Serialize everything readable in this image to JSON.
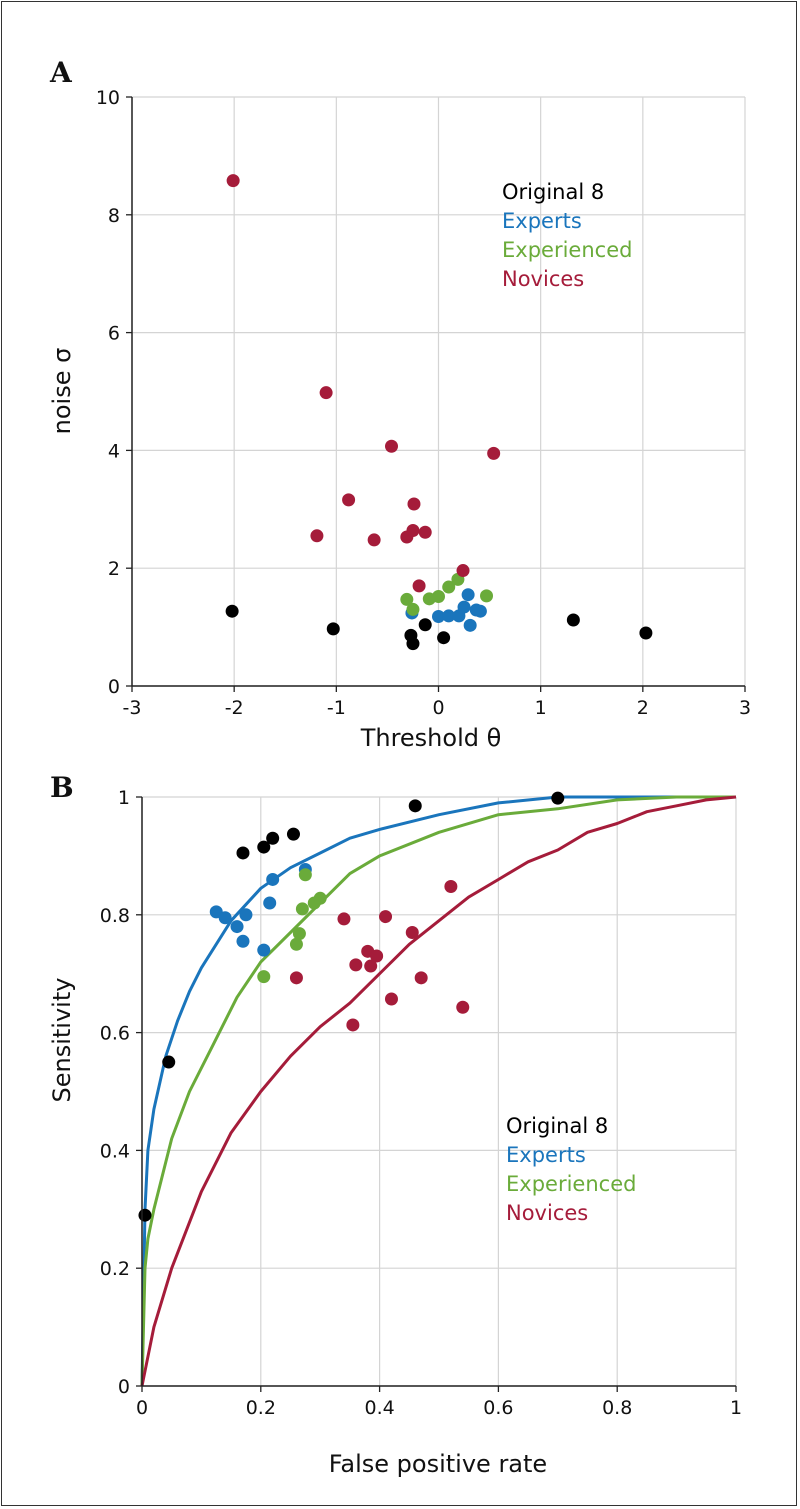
{
  "colors": {
    "original": "#000000",
    "experts": "#1a75bc",
    "experienced": "#6aab3a",
    "novices": "#a51c3a"
  },
  "chart_data": [
    {
      "type": "scatter",
      "panel_label": "A",
      "xlabel": "Threshold θ",
      "ylabel": "noise σ",
      "xlim": [
        -3,
        3
      ],
      "ylim": [
        0,
        10
      ],
      "xticks": [
        -3,
        -2,
        -1,
        0,
        1,
        2,
        3
      ],
      "yticks": [
        0,
        2,
        4,
        6,
        8,
        10
      ],
      "grid": true,
      "legend_position": "top-right",
      "legend": [
        "Original 8",
        "Experts",
        "Experienced",
        "Novices"
      ],
      "series": [
        {
          "name": "Original 8",
          "color": "#000000",
          "points": [
            [
              -2.02,
              1.27
            ],
            [
              -1.03,
              0.97
            ],
            [
              -0.27,
              0.86
            ],
            [
              -0.25,
              0.72
            ],
            [
              -0.13,
              1.04
            ],
            [
              0.05,
              0.82
            ],
            [
              1.32,
              1.12
            ],
            [
              2.03,
              0.9
            ]
          ]
        },
        {
          "name": "Experts",
          "color": "#1a75bc",
          "points": [
            [
              -0.26,
              1.24
            ],
            [
              0.0,
              1.18
            ],
            [
              0.1,
              1.19
            ],
            [
              0.2,
              1.19
            ],
            [
              0.25,
              1.34
            ],
            [
              0.29,
              1.55
            ],
            [
              0.31,
              1.03
            ],
            [
              0.37,
              1.29
            ],
            [
              0.41,
              1.27
            ]
          ]
        },
        {
          "name": "Experienced",
          "color": "#6aab3a",
          "points": [
            [
              -0.31,
              1.47
            ],
            [
              -0.25,
              1.3
            ],
            [
              -0.09,
              1.48
            ],
            [
              0.0,
              1.52
            ],
            [
              0.1,
              1.68
            ],
            [
              0.19,
              1.81
            ],
            [
              0.47,
              1.53
            ]
          ]
        },
        {
          "name": "Novices",
          "color": "#a51c3a",
          "points": [
            [
              -2.01,
              8.58
            ],
            [
              -1.1,
              4.98
            ],
            [
              -0.46,
              4.07
            ],
            [
              0.54,
              3.95
            ],
            [
              -0.88,
              3.16
            ],
            [
              -0.24,
              3.09
            ],
            [
              -1.19,
              2.55
            ],
            [
              -0.63,
              2.48
            ],
            [
              -0.31,
              2.53
            ],
            [
              -0.25,
              2.64
            ],
            [
              -0.13,
              2.61
            ],
            [
              0.24,
              1.96
            ],
            [
              -0.19,
              1.7
            ]
          ]
        }
      ]
    },
    {
      "type": "line",
      "panel_label": "B",
      "xlabel": "False positive rate",
      "ylabel": "Sensitivity",
      "xlim": [
        0,
        1
      ],
      "ylim": [
        0,
        1
      ],
      "xticks": [
        0,
        0.2,
        0.4,
        0.6,
        0.8,
        1
      ],
      "yticks": [
        0,
        0.2,
        0.4,
        0.6,
        0.8,
        1
      ],
      "xtick_labels": [
        "0",
        "0.2",
        "0.4",
        "0.6",
        "0.8",
        "1"
      ],
      "ytick_labels": [
        "0",
        "0.2",
        "0.4",
        "0.6",
        "0.8",
        "1"
      ],
      "grid": true,
      "legend_position": "lower-right",
      "legend": [
        "Original 8",
        "Experts",
        "Experienced",
        "Novices"
      ],
      "curves": [
        {
          "name": "Experts",
          "color": "#1a75bc",
          "points": [
            [
              0,
              0
            ],
            [
              0.005,
              0.3
            ],
            [
              0.01,
              0.4
            ],
            [
              0.02,
              0.47
            ],
            [
              0.04,
              0.56
            ],
            [
              0.06,
              0.62
            ],
            [
              0.08,
              0.67
            ],
            [
              0.1,
              0.71
            ],
            [
              0.15,
              0.79
            ],
            [
              0.2,
              0.845
            ],
            [
              0.25,
              0.88
            ],
            [
              0.3,
              0.905
            ],
            [
              0.35,
              0.93
            ],
            [
              0.4,
              0.945
            ],
            [
              0.5,
              0.97
            ],
            [
              0.6,
              0.99
            ],
            [
              0.7,
              1.0
            ],
            [
              0.8,
              1.0
            ],
            [
              1.0,
              1.0
            ]
          ]
        },
        {
          "name": "Experienced",
          "color": "#6aab3a",
          "points": [
            [
              0,
              0
            ],
            [
              0.005,
              0.2
            ],
            [
              0.01,
              0.25
            ],
            [
              0.02,
              0.3
            ],
            [
              0.05,
              0.42
            ],
            [
              0.08,
              0.5
            ],
            [
              0.12,
              0.58
            ],
            [
              0.16,
              0.66
            ],
            [
              0.2,
              0.72
            ],
            [
              0.25,
              0.77
            ],
            [
              0.3,
              0.82
            ],
            [
              0.35,
              0.87
            ],
            [
              0.4,
              0.9
            ],
            [
              0.5,
              0.94
            ],
            [
              0.6,
              0.97
            ],
            [
              0.7,
              0.98
            ],
            [
              0.8,
              0.995
            ],
            [
              0.9,
              1.0
            ],
            [
              1.0,
              1.0
            ]
          ]
        },
        {
          "name": "Novices",
          "color": "#a51c3a",
          "points": [
            [
              0,
              0
            ],
            [
              0.02,
              0.1
            ],
            [
              0.05,
              0.2
            ],
            [
              0.1,
              0.33
            ],
            [
              0.15,
              0.43
            ],
            [
              0.2,
              0.5
            ],
            [
              0.25,
              0.56
            ],
            [
              0.3,
              0.61
            ],
            [
              0.35,
              0.65
            ],
            [
              0.4,
              0.7
            ],
            [
              0.45,
              0.75
            ],
            [
              0.5,
              0.79
            ],
            [
              0.55,
              0.83
            ],
            [
              0.6,
              0.86
            ],
            [
              0.65,
              0.89
            ],
            [
              0.7,
              0.91
            ],
            [
              0.75,
              0.94
            ],
            [
              0.8,
              0.955
            ],
            [
              0.85,
              0.975
            ],
            [
              0.9,
              0.985
            ],
            [
              0.95,
              0.995
            ],
            [
              1.0,
              1.0
            ]
          ]
        }
      ],
      "series": [
        {
          "name": "Original 8",
          "color": "#000000",
          "points": [
            [
              0.005,
              0.29
            ],
            [
              0.045,
              0.55
            ],
            [
              0.17,
              0.905
            ],
            [
              0.205,
              0.915
            ],
            [
              0.22,
              0.93
            ],
            [
              0.255,
              0.937
            ],
            [
              0.46,
              0.985
            ],
            [
              0.7,
              0.998
            ]
          ]
        },
        {
          "name": "Experts",
          "color": "#1a75bc",
          "points": [
            [
              0.125,
              0.805
            ],
            [
              0.14,
              0.795
            ],
            [
              0.16,
              0.78
            ],
            [
              0.175,
              0.8
            ],
            [
              0.17,
              0.755
            ],
            [
              0.205,
              0.74
            ],
            [
              0.215,
              0.82
            ],
            [
              0.22,
              0.86
            ],
            [
              0.275,
              0.877
            ]
          ]
        },
        {
          "name": "Experienced",
          "color": "#6aab3a",
          "points": [
            [
              0.205,
              0.695
            ],
            [
              0.26,
              0.75
            ],
            [
              0.265,
              0.768
            ],
            [
              0.27,
              0.81
            ],
            [
              0.275,
              0.868
            ],
            [
              0.29,
              0.82
            ],
            [
              0.3,
              0.828
            ]
          ]
        },
        {
          "name": "Novices",
          "color": "#a51c3a",
          "points": [
            [
              0.26,
              0.693
            ],
            [
              0.34,
              0.793
            ],
            [
              0.355,
              0.613
            ],
            [
              0.36,
              0.715
            ],
            [
              0.38,
              0.738
            ],
            [
              0.385,
              0.713
            ],
            [
              0.395,
              0.73
            ],
            [
              0.41,
              0.797
            ],
            [
              0.42,
              0.657
            ],
            [
              0.455,
              0.77
            ],
            [
              0.47,
              0.693
            ],
            [
              0.52,
              0.848
            ],
            [
              0.54,
              0.643
            ]
          ]
        }
      ]
    }
  ]
}
